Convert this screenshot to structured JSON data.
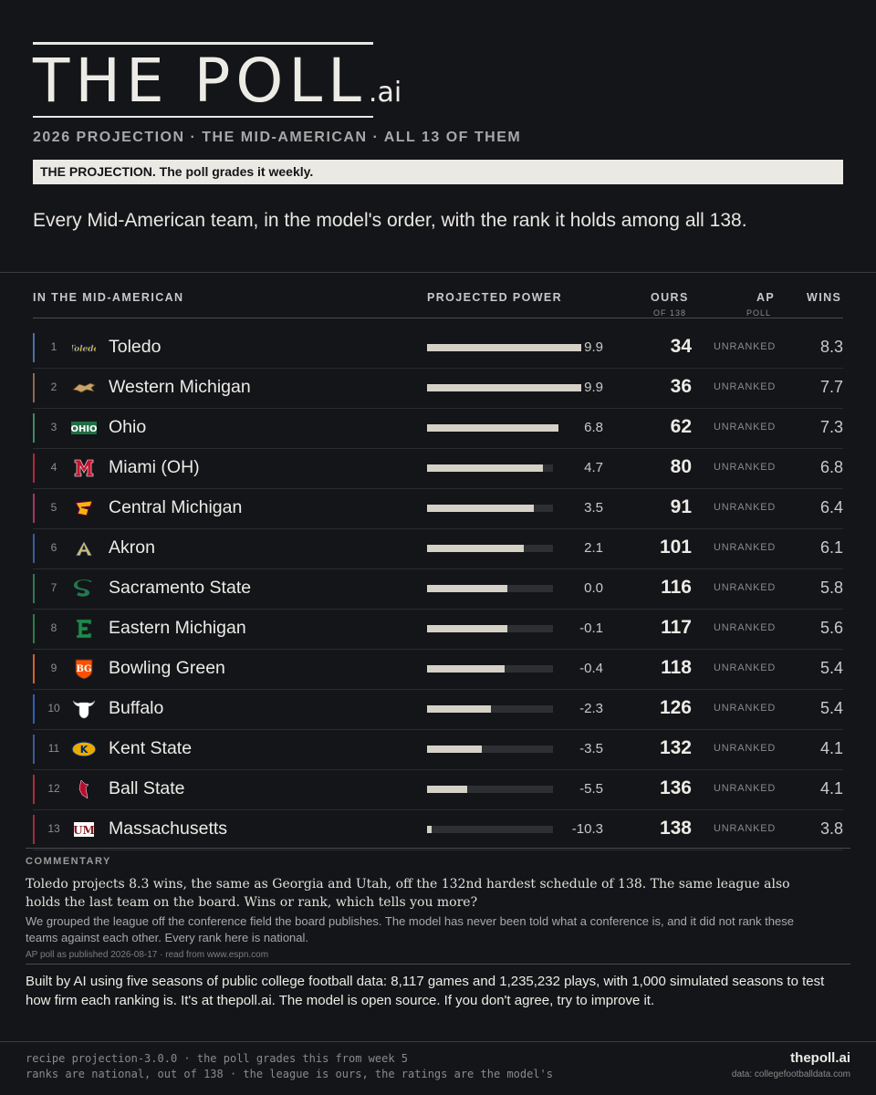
{
  "brand": {
    "name": "THE POLL",
    "suffix": ".ai"
  },
  "subtitle": "2026 PROJECTION · THE MID-AMERICAN · ALL 13 OF THEM",
  "banner": "THE PROJECTION. The poll grades it weekly.",
  "lead": "Every Mid-American team, in the model's order, with the rank it holds among all 138.",
  "columns": {
    "team": "IN THE MID-AMERICAN",
    "power": "PROJECTED POWER",
    "ours": "OURS",
    "ours_sub": "OF 138",
    "ap": "AP",
    "ap_sub": "POLL",
    "wins": "WINS"
  },
  "power_scale_max": 17,
  "teams": [
    {
      "rank": "1",
      "name": "Toledo",
      "power": "9.9",
      "ours": "34",
      "ap": "UNRANKED",
      "wins": "8.3",
      "accent": "#4a6fa5",
      "icon": "toledo-rocket-icon"
    },
    {
      "rank": "2",
      "name": "Western Michigan",
      "power": "9.9",
      "ours": "36",
      "ap": "UNRANKED",
      "wins": "7.7",
      "accent": "#8c6a52",
      "icon": "western-michigan-bronco-icon"
    },
    {
      "rank": "3",
      "name": "Ohio",
      "power": "6.8",
      "ours": "62",
      "ap": "UNRANKED",
      "wins": "7.3",
      "accent": "#3f8a64",
      "icon": "ohio-wordmark-icon"
    },
    {
      "rank": "4",
      "name": "Miami (OH)",
      "power": "4.7",
      "ours": "80",
      "ap": "UNRANKED",
      "wins": "6.8",
      "accent": "#b3263a",
      "icon": "miami-m-icon"
    },
    {
      "rank": "5",
      "name": "Central Michigan",
      "power": "3.5",
      "ours": "91",
      "ap": "UNRANKED",
      "wins": "6.4",
      "accent": "#a3385e",
      "icon": "central-michigan-chippewa-icon"
    },
    {
      "rank": "6",
      "name": "Akron",
      "power": "2.1",
      "ours": "101",
      "ap": "UNRANKED",
      "wins": "6.1",
      "accent": "#3b5c9c",
      "icon": "akron-a-icon"
    },
    {
      "rank": "7",
      "name": "Sacramento State",
      "power": "0.0",
      "ours": "116",
      "ap": "UNRANKED",
      "wins": "5.8",
      "accent": "#2f7a55",
      "icon": "sacramento-state-s-icon"
    },
    {
      "rank": "8",
      "name": "Eastern Michigan",
      "power": "-0.1",
      "ours": "117",
      "ap": "UNRANKED",
      "wins": "5.6",
      "accent": "#2a7d4a",
      "icon": "eastern-michigan-e-icon"
    },
    {
      "rank": "9",
      "name": "Bowling Green",
      "power": "-0.4",
      "ours": "118",
      "ap": "UNRANKED",
      "wins": "5.4",
      "accent": "#d4622a",
      "icon": "bowling-green-bg-icon"
    },
    {
      "rank": "10",
      "name": "Buffalo",
      "power": "-2.3",
      "ours": "126",
      "ap": "UNRANKED",
      "wins": "5.4",
      "accent": "#2f5fb8",
      "icon": "buffalo-bull-icon"
    },
    {
      "rank": "11",
      "name": "Kent State",
      "power": "-3.5",
      "ours": "132",
      "ap": "UNRANKED",
      "wins": "4.1",
      "accent": "#3d5a99",
      "icon": "kent-state-k-icon"
    },
    {
      "rank": "12",
      "name": "Ball State",
      "power": "-5.5",
      "ours": "136",
      "ap": "UNRANKED",
      "wins": "4.1",
      "accent": "#b02a37",
      "icon": "ball-state-cardinal-icon"
    },
    {
      "rank": "13",
      "name": "Massachusetts",
      "power": "-10.3",
      "ours": "138",
      "ap": "UNRANKED",
      "wins": "3.8",
      "accent": "#9c2f3a",
      "icon": "massachusetts-um-icon"
    }
  ],
  "commentary": {
    "heading": "COMMENTARY",
    "main": "Toledo projects 8.3 wins, the same as Georgia and Utah, off the 132nd hardest schedule of 138. The same league also holds the last team on the board. Wins or rank, which tells you more?",
    "sub": "We grouped the league off the conference field the board publishes. The model has never been told what a conference is, and it did not rank these teams against each other. Every rank here is national.",
    "note": "AP poll as published 2026-08-17 · read from www.espn.com"
  },
  "built": "Built by AI using five seasons of public college football data: 8,117 games and 1,235,232 plays, with 1,000 simulated seasons to test how firm each ranking is. It's at thepoll.ai. The model is open source. If you don't agree, try to improve it.",
  "footer": {
    "line1": "recipe projection-3.0.0 · the poll grades this from week 5",
    "line2": "ranks are national, out of 138 · the league is ours, the ratings are the model's",
    "site": "thepoll.ai",
    "data": "data: collegefootballdata.com"
  }
}
